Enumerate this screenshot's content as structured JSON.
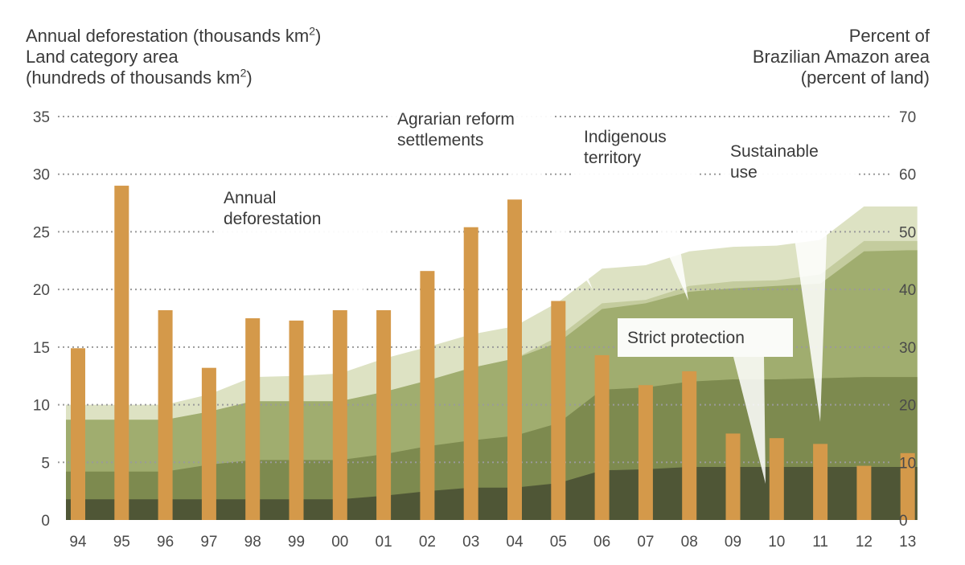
{
  "header": {
    "left_line1": "Annual deforestation  (thousands km",
    "left_line2": "Land category area",
    "left_line3": "(hundreds of thousands km",
    "superscript": "2",
    "close_paren": ")",
    "right_line1": "Percent of",
    "right_line2": "Brazilian Amazon area",
    "right_line3": "(percent of land)"
  },
  "colors": {
    "bar": "#d4994a",
    "strict_protection": "#4f5636",
    "sustainable_use": "#7d8a4f",
    "indigenous": "#a0ad6f",
    "agrarian": "#c4cc9e",
    "sustainable_top": "#dde2c3",
    "grid": "#9a9a9a",
    "callout_bg": "#ffffff"
  },
  "chart_data": {
    "type": "bar",
    "x": [
      "94",
      "95",
      "96",
      "97",
      "98",
      "99",
      "00",
      "01",
      "02",
      "03",
      "04",
      "05",
      "06",
      "07",
      "08",
      "09",
      "10",
      "11",
      "12",
      "13"
    ],
    "left_axis": {
      "min": 0,
      "max": 35,
      "ticks": [
        0,
        5,
        10,
        15,
        20,
        25,
        30,
        35
      ]
    },
    "right_axis": {
      "min": 0,
      "max": 70,
      "ticks": [
        0,
        10,
        20,
        30,
        40,
        50,
        60,
        70
      ]
    },
    "grid": "dotted",
    "series": [
      {
        "name": "Annual deforestation",
        "kind": "bar",
        "values": [
          14.9,
          29.0,
          18.2,
          13.2,
          17.5,
          17.3,
          18.2,
          18.2,
          21.6,
          25.4,
          27.8,
          19.0,
          14.3,
          11.7,
          12.9,
          7.5,
          7.1,
          6.6,
          4.7,
          5.8
        ]
      },
      {
        "name": "Strict protection",
        "kind": "stacked-area",
        "values": [
          3.6,
          3.6,
          3.6,
          3.6,
          3.6,
          3.6,
          3.6,
          4.2,
          5.0,
          5.6,
          5.6,
          6.4,
          8.6,
          8.8,
          9.2,
          9.2,
          9.2,
          9.2,
          9.2,
          9.2
        ]
      },
      {
        "name": "Sustainable use",
        "kind": "stacked-area",
        "values": [
          8.4,
          8.4,
          8.4,
          9.6,
          10.4,
          10.4,
          10.4,
          11.4,
          12.8,
          13.8,
          14.6,
          16.8,
          22.6,
          23.0,
          24.0,
          24.4,
          24.4,
          24.6,
          24.8,
          24.8
        ]
      },
      {
        "name": "Indigenous territory",
        "kind": "stacked-area",
        "values": [
          17.4,
          17.4,
          17.4,
          18.8,
          20.6,
          20.6,
          20.6,
          22.2,
          24.2,
          26.4,
          28.0,
          30.8,
          36.6,
          37.6,
          39.6,
          40.2,
          40.6,
          41.0,
          46.6,
          46.8
        ]
      },
      {
        "name": "Agrarian reform settlements",
        "kind": "stacked-area",
        "values": [
          20.0,
          20.0,
          20.0,
          21.8,
          24.8,
          25.0,
          25.4,
          28.0,
          30.0,
          32.2,
          33.6,
          37.8,
          43.6,
          44.2,
          46.6,
          47.4,
          47.6,
          48.6,
          54.4,
          54.4
        ]
      }
    ],
    "annotations": [
      {
        "id": "annual",
        "lines": [
          "Annual",
          "deforestation"
        ]
      },
      {
        "id": "agrarian",
        "lines": [
          "Agrarian reform",
          "settlements"
        ]
      },
      {
        "id": "indigenous",
        "lines": [
          "Indigenous",
          "territory"
        ]
      },
      {
        "id": "sustainable",
        "lines": [
          "Sustainable",
          "use"
        ]
      },
      {
        "id": "strict",
        "lines": [
          "Strict protection"
        ]
      }
    ]
  }
}
